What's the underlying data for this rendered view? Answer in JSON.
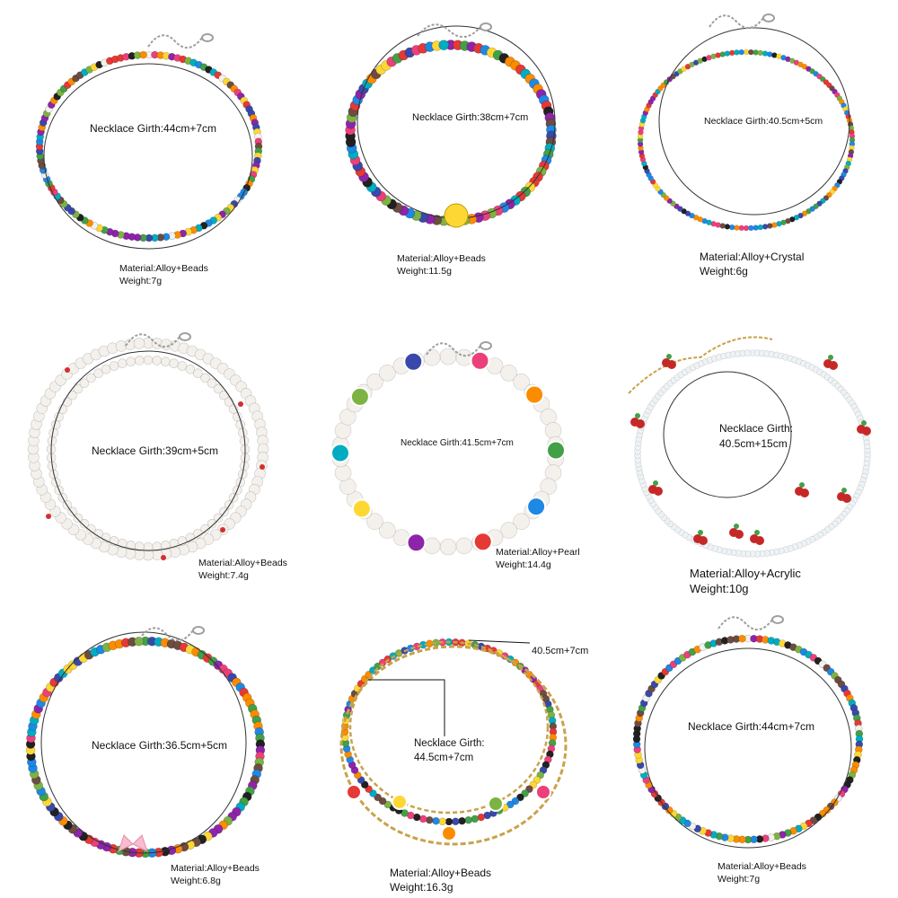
{
  "panels": [
    {
      "girth": "Necklace Girth:44cm+7cm",
      "material": "Material:Alloy+Beads",
      "weight": "Weight:7g"
    },
    {
      "girth": "Necklace Girth:38cm+7cm",
      "material": "Material:Alloy+Beads",
      "weight": "Weight:11.5g"
    },
    {
      "girth": "Necklace Girth:40.5cm+5cm",
      "material": "Material:Alloy+Crystal",
      "weight": "Weight:6g"
    },
    {
      "girth": "Necklace Girth:39cm+5cm",
      "material": "Material:Alloy+Beads",
      "weight": "Weight:7.4g"
    },
    {
      "girth": "Necklace Girth:41.5cm+7cm",
      "material": "Material:Alloy+Pearl",
      "weight": "Weight:14.4g"
    },
    {
      "girth_line1": "Necklace Girth:",
      "girth_line2": "40.5cm+15cm",
      "material": "Material:Alloy+Acrylic",
      "weight": "Weight:10g"
    },
    {
      "girth": "Necklace Girth:36.5cm+5cm",
      "material": "Material:Alloy+Beads",
      "weight": "Weight:6.8g"
    },
    {
      "girth_line1": "Necklace Girth:",
      "girth_line2": "44.5cm+7cm",
      "girth_top": "40.5cm+7cm",
      "material": "Material:Alloy+Beads",
      "weight": "Weight:16.3g"
    },
    {
      "girth": "Necklace Girth:44cm+7cm",
      "material": "Material:Alloy+Beads",
      "weight": "Weight:7g"
    }
  ],
  "colors": {
    "bead_palette": [
      "#e53935",
      "#fb8c00",
      "#fdd835",
      "#43a047",
      "#1e88e5",
      "#8e24aa",
      "#ec407a",
      "#00acc1",
      "#6d4c41",
      "#212121",
      "#7cb342",
      "#3949ab"
    ],
    "chain": "#c9a24a",
    "clasp": "#9e9e9e",
    "pearl": "#f4f1ec",
    "circle_outline": "#333333"
  }
}
